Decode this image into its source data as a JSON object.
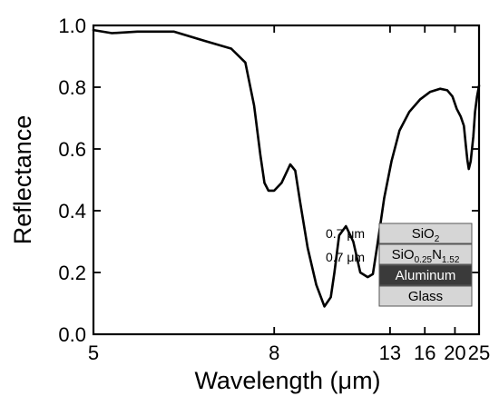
{
  "chart_data": {
    "type": "line",
    "xlabel": "Wavelength (μm)",
    "ylabel": "Reflectance",
    "xscale": "reciprocal",
    "xlim": [
      5,
      25
    ],
    "ylim": [
      0.0,
      1.0
    ],
    "x_ticks": [
      5,
      8,
      13,
      16,
      20,
      25
    ],
    "x_tick_labels": [
      "5",
      "8",
      "13",
      "16",
      "20",
      "25"
    ],
    "y_ticks": [
      0.0,
      0.2,
      0.4,
      0.6,
      0.8,
      1.0
    ],
    "y_tick_labels": [
      "0.0",
      "0.2",
      "0.4",
      "0.6",
      "0.8",
      "1.0"
    ],
    "grid": false,
    "line_color": "#000000",
    "series": [
      {
        "x": [
          5.0,
          5.2,
          5.5,
          6.0,
          6.5,
          7.0,
          7.3,
          7.5,
          7.65,
          7.75,
          7.85,
          8.0,
          8.2,
          8.45,
          8.6,
          8.75,
          9.0,
          9.3,
          9.6,
          9.85,
          10.0,
          10.2,
          10.5,
          10.85,
          11.2,
          11.6,
          11.9,
          12.2,
          12.6,
          13.1,
          13.7,
          14.5,
          15.5,
          16.6,
          17.8,
          18.8,
          19.6,
          20.3,
          21.0,
          21.6,
          22.0,
          22.3,
          22.6,
          23.0,
          23.6,
          24.0,
          24.5,
          25.0
        ],
        "y": [
          0.985,
          0.975,
          0.98,
          0.98,
          0.95,
          0.925,
          0.88,
          0.74,
          0.58,
          0.49,
          0.465,
          0.465,
          0.49,
          0.55,
          0.53,
          0.43,
          0.28,
          0.16,
          0.09,
          0.12,
          0.2,
          0.32,
          0.35,
          0.3,
          0.2,
          0.185,
          0.195,
          0.3,
          0.44,
          0.56,
          0.66,
          0.72,
          0.76,
          0.785,
          0.795,
          0.79,
          0.77,
          0.73,
          0.705,
          0.675,
          0.61,
          0.565,
          0.535,
          0.56,
          0.64,
          0.72,
          0.77,
          0.805
        ]
      }
    ],
    "annotations": {
      "thickness_1": "0.7 μm",
      "thickness_2": "0.7 μm",
      "layers": [
        {
          "name": "SiO",
          "sub": "2",
          "rest": "",
          "sub2": "",
          "bg": "#d6d6d6",
          "fg": "#000000"
        },
        {
          "name": "SiO",
          "sub": "0.25",
          "rest": "N",
          "sub2": "1.52",
          "bg": "#d6d6d6",
          "fg": "#000000"
        },
        {
          "name": "Aluminum",
          "sub": "",
          "rest": "",
          "sub2": "",
          "bg": "#3a3a3a",
          "fg": "#ffffff"
        },
        {
          "name": "Glass",
          "sub": "",
          "rest": "",
          "sub2": "",
          "bg": "#d6d6d6",
          "fg": "#000000"
        }
      ]
    }
  }
}
